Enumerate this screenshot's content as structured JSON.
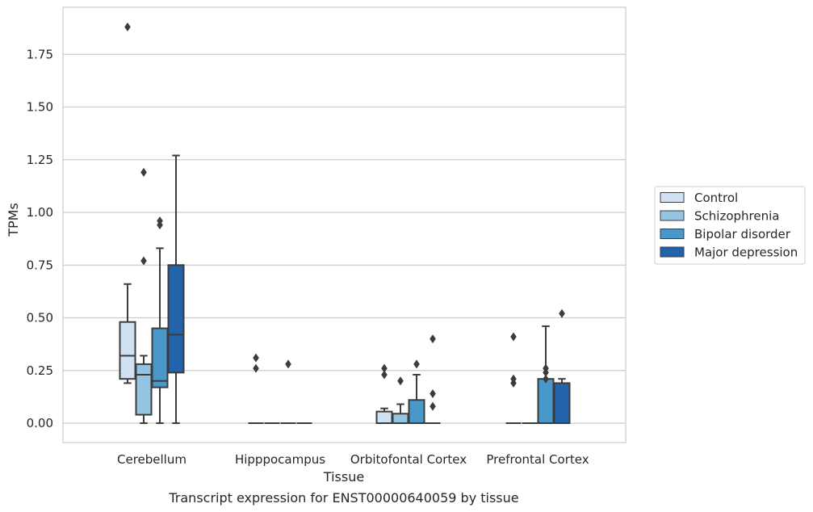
{
  "chart_data": {
    "type": "box",
    "caption": "Transcript expression for ENST00000640059 by tissue",
    "xlabel": "Tissue",
    "ylabel": "TPMs",
    "ylim": [
      -0.09,
      1.95
    ],
    "yticks": [
      "0.00",
      "0.25",
      "0.50",
      "0.75",
      "1.00",
      "1.25",
      "1.50",
      "1.75"
    ],
    "ytick_values": [
      0,
      0.25,
      0.5,
      0.75,
      1.0,
      1.25,
      1.5,
      1.75
    ],
    "grid": "horizontal",
    "legend_position": "right",
    "categories": [
      "Cerebellum",
      "Hipppocampus",
      "Orbitofontal Cortex",
      "Prefrontal Cortex"
    ],
    "series": [
      {
        "name": "Control",
        "color": "#d0e1f2",
        "boxes": [
          {
            "whislo": 0.19,
            "q1": 0.21,
            "med": 0.32,
            "q3": 0.48,
            "whishi": 0.66,
            "fliers": [
              1.88
            ]
          },
          {
            "whislo": 0,
            "q1": 0,
            "med": 0,
            "q3": 0,
            "whishi": 0,
            "fliers": [
              0.26,
              0.31
            ]
          },
          {
            "whislo": 0,
            "q1": 0,
            "med": 0,
            "q3": 0.055,
            "whishi": 0.07,
            "fliers": [
              0.23,
              0.26
            ]
          },
          {
            "whislo": 0,
            "q1": 0,
            "med": 0,
            "q3": 0,
            "whishi": 0,
            "fliers": [
              0.19,
              0.21,
              0.41
            ]
          }
        ]
      },
      {
        "name": "Schizophrenia",
        "color": "#94c4df",
        "boxes": [
          {
            "whislo": 0.0,
            "q1": 0.04,
            "med": 0.23,
            "q3": 0.28,
            "whishi": 0.32,
            "fliers": [
              0.77,
              1.19
            ]
          },
          {
            "whislo": 0,
            "q1": 0,
            "med": 0,
            "q3": 0,
            "whishi": 0,
            "fliers": []
          },
          {
            "whislo": 0,
            "q1": 0,
            "med": 0,
            "q3": 0.045,
            "whishi": 0.09,
            "fliers": [
              0.2
            ]
          },
          {
            "whislo": 0,
            "q1": 0,
            "med": 0,
            "q3": 0,
            "whishi": 0,
            "fliers": []
          }
        ]
      },
      {
        "name": "Bipolar disorder",
        "color": "#4a98c9",
        "boxes": [
          {
            "whislo": 0.0,
            "q1": 0.17,
            "med": 0.2,
            "q3": 0.45,
            "whishi": 0.83,
            "fliers": [
              0.94,
              0.96
            ]
          },
          {
            "whislo": 0,
            "q1": 0,
            "med": 0,
            "q3": 0,
            "whishi": 0,
            "fliers": [
              0.28
            ]
          },
          {
            "whislo": 0,
            "q1": 0,
            "med": 0,
            "q3": 0.11,
            "whishi": 0.23,
            "fliers": [
              0.28
            ]
          },
          {
            "whislo": 0,
            "q1": 0,
            "med": 0,
            "q3": 0.21,
            "whishi": 0.46,
            "fliers": [
              0.21,
              0.24,
              0.26
            ]
          }
        ]
      },
      {
        "name": "Major depression",
        "color": "#2164ab",
        "boxes": [
          {
            "whislo": 0.0,
            "q1": 0.24,
            "med": 0.42,
            "q3": 0.75,
            "whishi": 1.27,
            "fliers": []
          },
          {
            "whislo": 0,
            "q1": 0,
            "med": 0,
            "q3": 0,
            "whishi": 0,
            "fliers": []
          },
          {
            "whislo": 0,
            "q1": 0,
            "med": 0,
            "q3": 0,
            "whishi": 0,
            "fliers": [
              0.08,
              0.14,
              0.4
            ]
          },
          {
            "whislo": 0,
            "q1": 0,
            "med": 0,
            "q3": 0.19,
            "whishi": 0.21,
            "fliers": [
              0.52
            ]
          }
        ]
      }
    ]
  }
}
